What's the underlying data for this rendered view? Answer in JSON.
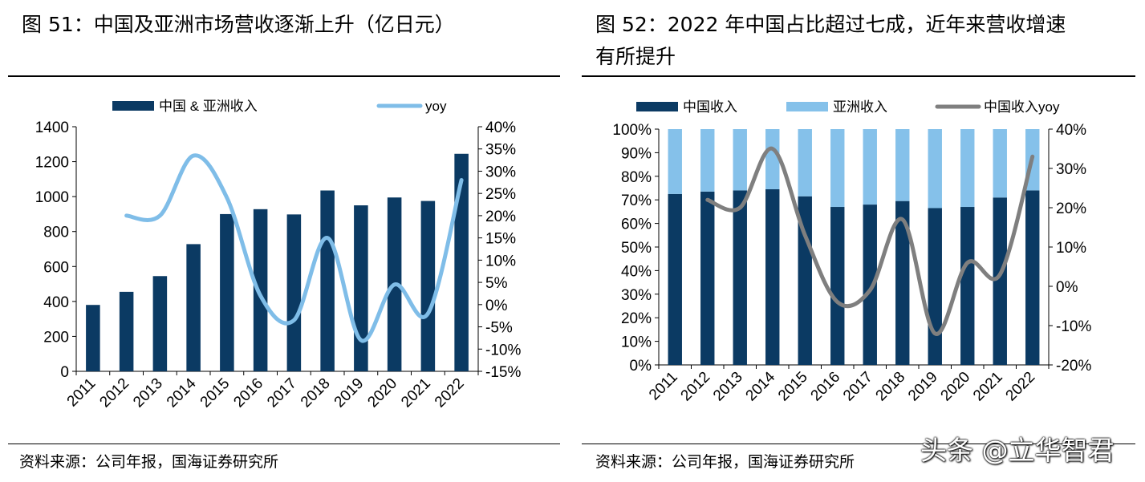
{
  "left": {
    "title": "图 51：中国及亚洲市场营收逐渐上升（亿日元）",
    "source": "资料来源：公司年报，国海证券研究所",
    "chart_data": {
      "type": "bar",
      "categories": [
        "2011",
        "2012",
        "2013",
        "2014",
        "2015",
        "2016",
        "2017",
        "2018",
        "2019",
        "2020",
        "2021",
        "2022"
      ],
      "series": [
        {
          "name": "中国 & 亚洲收入",
          "type": "bar",
          "axis": "left",
          "color": "#0b3a63",
          "values": [
            380,
            455,
            545,
            728,
            900,
            928,
            898,
            1035,
            950,
            995,
            975,
            1245
          ]
        },
        {
          "name": "yoy",
          "type": "line",
          "axis": "right",
          "color": "#7fbde8",
          "values": [
            null,
            20,
            20,
            33.5,
            24,
            2,
            -3.5,
            15,
            -8,
            4.5,
            -2,
            28
          ]
        }
      ],
      "ylim": [
        0,
        1400
      ],
      "yticks": [
        0,
        200,
        400,
        600,
        800,
        1000,
        1200,
        1400
      ],
      "y2lim": [
        -15,
        40
      ],
      "y2ticks": [
        -15,
        -10,
        -5,
        0,
        5,
        10,
        15,
        20,
        25,
        30,
        35,
        40
      ],
      "y2_suffix": "%",
      "legend": "top"
    }
  },
  "right": {
    "title_line1": "图 52：2022 年中国占比超过七成，近年来营收增速",
    "title_line2": "有所提升",
    "source": "资料来源：公司年报，国海证券研究所",
    "watermark": "头条 @立华智君",
    "chart_data": {
      "type": "bar",
      "stacked": true,
      "categories": [
        "2011",
        "2012",
        "2013",
        "2014",
        "2015",
        "2016",
        "2017",
        "2018",
        "2019",
        "2020",
        "2021",
        "2022"
      ],
      "series": [
        {
          "name": "中国收入",
          "type": "bar",
          "axis": "left",
          "color": "#0b3a63",
          "values": [
            72.5,
            73.5,
            74,
            74.5,
            71.5,
            67,
            68,
            69.5,
            66.5,
            67,
            71,
            74
          ]
        },
        {
          "name": "亚洲收入",
          "type": "bar",
          "axis": "left",
          "color": "#85c1ea",
          "values": [
            27.5,
            26.5,
            26,
            25.5,
            28.5,
            33,
            32,
            30.5,
            33.5,
            33,
            29,
            26
          ]
        },
        {
          "name": "中国收入yoy",
          "type": "line",
          "axis": "right",
          "color": "#7f7f7f",
          "values": [
            null,
            22,
            20,
            35,
            13,
            -4,
            -1,
            17,
            -12,
            6,
            3,
            33
          ]
        }
      ],
      "ylim": [
        0,
        100
      ],
      "yticks": [
        0,
        10,
        20,
        30,
        40,
        50,
        60,
        70,
        80,
        90,
        100
      ],
      "y_suffix": "%",
      "y2lim": [
        -20,
        40
      ],
      "y2ticks": [
        -20,
        -10,
        0,
        10,
        20,
        30,
        40
      ],
      "y2_suffix": "%",
      "legend": "top"
    }
  }
}
